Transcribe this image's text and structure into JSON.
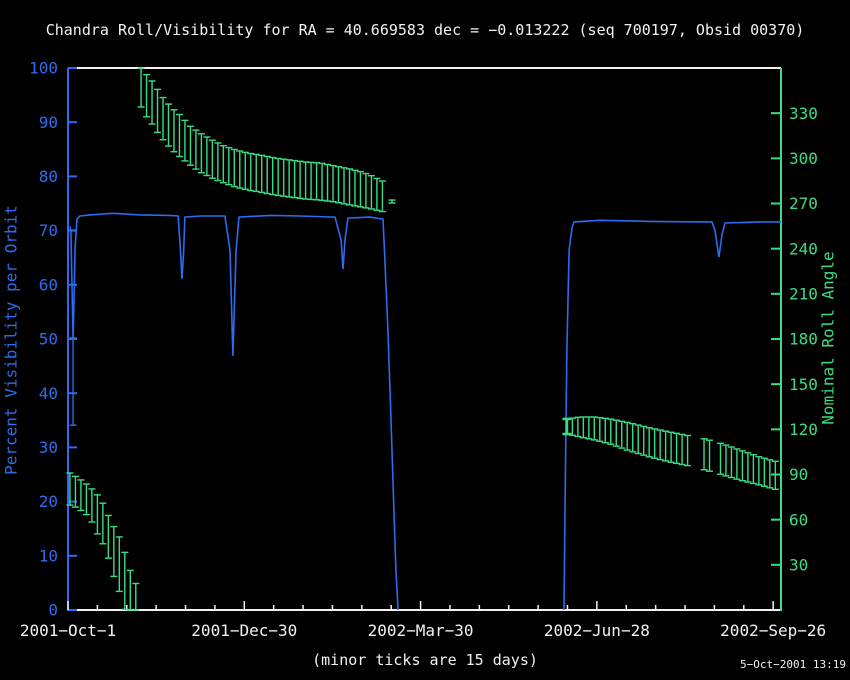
{
  "timestamp": "5−Oct−2001 13:19",
  "chart_data": {
    "type": "line",
    "title": "Chandra Roll/Visibility for RA = 40.669583 dec = −0.013222 (seq 700197, Obsid 00370)",
    "colors": {
      "visibility": "#2b6cf0",
      "roll": "#3cdc82",
      "frame": "#f2f2f2",
      "background": "#000000"
    },
    "x_axis": {
      "range_days": [
        0,
        364
      ],
      "major_tick_days": 90,
      "minor_tick_days": 15,
      "note": "(minor ticks are 15 days)",
      "tick_labels": [
        {
          "day": 0,
          "label": "2001−Oct−1"
        },
        {
          "day": 90,
          "label": "2001−Dec−30"
        },
        {
          "day": 180,
          "label": "2002−Mar−30"
        },
        {
          "day": 270,
          "label": "2002−Jun−28"
        },
        {
          "day": 360,
          "label": "2002−Sep−26"
        }
      ]
    },
    "y_left": {
      "label": "Percent Visibility per Orbit",
      "range": [
        0,
        100
      ],
      "tick_step": 10
    },
    "y_right": {
      "label": "Nominal Roll Angle",
      "range": [
        0,
        360
      ],
      "tick_step": 30,
      "labeled_ticks": [
        30,
        60,
        90,
        120,
        150,
        180,
        210,
        240,
        270,
        300,
        330
      ]
    },
    "visibility": {
      "name": "percent-visibility-per-orbit",
      "windows": [
        [
          [
            1.0,
            70.8
          ],
          [
            1.5,
            69.7
          ],
          [
            2.6,
            49.8
          ],
          [
            3.1,
            58.1
          ],
          [
            3.6,
            66.8
          ],
          [
            4.6,
            72.1
          ],
          [
            6.1,
            72.7
          ],
          [
            11.2,
            72.9
          ],
          [
            23.0,
            73.2
          ],
          [
            36.8,
            72.9
          ],
          [
            52.1,
            72.8
          ],
          [
            56.2,
            72.7
          ],
          [
            57.5,
            66.0
          ],
          [
            58.2,
            61.1
          ],
          [
            59.0,
            66.0
          ],
          [
            59.7,
            72.5
          ],
          [
            67.4,
            72.7
          ],
          [
            80.1,
            72.7
          ],
          [
            82.7,
            66.4
          ],
          [
            84.2,
            46.9
          ],
          [
            85.8,
            66.4
          ],
          [
            87.3,
            72.5
          ],
          [
            103.1,
            72.8
          ],
          [
            118.4,
            72.7
          ],
          [
            136.3,
            72.5
          ],
          [
            139.4,
            68.3
          ],
          [
            140.4,
            62.9
          ],
          [
            141.4,
            68.3
          ],
          [
            142.9,
            72.3
          ],
          [
            154.2,
            72.5
          ],
          [
            160.8,
            72.1
          ],
          [
            161.8,
            64.6
          ],
          [
            163.3,
            51.7
          ],
          [
            164.9,
            35.1
          ],
          [
            166.4,
            18.5
          ],
          [
            167.4,
            7.4
          ],
          [
            168.5,
            0
          ]
        ],
        [
          [
            253.2,
            0
          ],
          [
            253.7,
            16.6
          ],
          [
            254.2,
            33.2
          ],
          [
            254.7,
            48.0
          ],
          [
            255.8,
            66.4
          ],
          [
            257.3,
            70.5
          ],
          [
            258.3,
            71.6
          ],
          [
            271.6,
            71.9
          ],
          [
            297.1,
            71.7
          ],
          [
            322.6,
            71.6
          ],
          [
            328.7,
            71.6
          ],
          [
            330.3,
            70.1
          ],
          [
            332.3,
            65.1
          ],
          [
            333.9,
            69.2
          ],
          [
            335.4,
            71.4
          ],
          [
            353.3,
            71.6
          ],
          [
            364.0,
            71.6
          ]
        ]
      ],
      "start_caps": [
        {
          "day": 2.6,
          "vis": 70.1
        },
        {
          "day": 2.6,
          "vis": 60.0
        },
        {
          "day": 2.6,
          "vis": 50.2
        },
        {
          "day": 2.6,
          "vis": 34.1
        }
      ],
      "cap_connector": {
        "day": 2.6,
        "from": 50.2,
        "to": 34.1
      }
    },
    "bar_spacing_days": 2.8,
    "roll_bands": [
      {
        "name": "roll-band-upper-window1",
        "first_bar_bold": false,
        "gaps": [],
        "top": [
          [
            37.3,
            360
          ],
          [
            39.8,
            356
          ],
          [
            42.9,
            351.4
          ],
          [
            45.9,
            345.4
          ],
          [
            49.0,
            339.4
          ],
          [
            53.1,
            333.4
          ],
          [
            57.2,
            328.8
          ],
          [
            62.3,
            321.5
          ],
          [
            67.4,
            316.8
          ],
          [
            73.5,
            312.2
          ],
          [
            79.6,
            308.2
          ],
          [
            85.8,
            305.5
          ],
          [
            91.9,
            303.5
          ],
          [
            98.0,
            302.2
          ],
          [
            105.7,
            300.2
          ],
          [
            113.3,
            298.9
          ],
          [
            121.0,
            297.6
          ],
          [
            128.6,
            296.9
          ],
          [
            136.3,
            294.9
          ],
          [
            144.0,
            292.9
          ],
          [
            150.1,
            290.9
          ],
          [
            155.2,
            288.3
          ],
          [
            159.3,
            285.6
          ],
          [
            161.8,
            284.3
          ]
        ],
        "bottom": [
          [
            37.3,
            334.1
          ],
          [
            39.8,
            328.1
          ],
          [
            42.9,
            322.8
          ],
          [
            45.9,
            316.8
          ],
          [
            49.0,
            311.5
          ],
          [
            53.1,
            305.5
          ],
          [
            57.2,
            300.9
          ],
          [
            62.3,
            295.6
          ],
          [
            67.4,
            290.9
          ],
          [
            73.5,
            286.9
          ],
          [
            79.6,
            283.6
          ],
          [
            85.8,
            280.9
          ],
          [
            91.9,
            278.9
          ],
          [
            98.0,
            277.6
          ],
          [
            105.7,
            275.6
          ],
          [
            113.3,
            274.3
          ],
          [
            121.0,
            273.0
          ],
          [
            128.6,
            272.3
          ],
          [
            136.3,
            271.0
          ],
          [
            144.0,
            269.0
          ],
          [
            150.1,
            267.6
          ],
          [
            155.2,
            266.3
          ],
          [
            159.3,
            265.0
          ],
          [
            161.8,
            264.3
          ]
        ]
      },
      {
        "name": "roll-band-lower-window1",
        "first_bar_bold": false,
        "gaps": [],
        "top": [
          [
            1.0,
            91.0
          ],
          [
            5.1,
            87.7
          ],
          [
            8.2,
            85.0
          ],
          [
            11.2,
            81.7
          ],
          [
            13.8,
            78.4
          ],
          [
            16.3,
            74.4
          ],
          [
            18.9,
            68.4
          ],
          [
            20.9,
            61.8
          ],
          [
            23.5,
            55.1
          ],
          [
            26.5,
            47.8
          ],
          [
            29.1,
            37.9
          ],
          [
            31.7,
            26.6
          ],
          [
            34.7,
            17.3
          ]
        ],
        "bottom": [
          [
            1.0,
            69.7
          ],
          [
            5.1,
            67.7
          ],
          [
            8.2,
            64.4
          ],
          [
            11.2,
            61.8
          ],
          [
            13.8,
            53.1
          ],
          [
            16.3,
            47.8
          ],
          [
            18.9,
            41.2
          ],
          [
            20.9,
            33.2
          ],
          [
            23.5,
            21.9
          ],
          [
            26.5,
            11.3
          ],
          [
            29.1,
            0
          ],
          [
            31.7,
            0
          ],
          [
            34.7,
            0
          ]
        ]
      },
      {
        "name": "roll-band-window2",
        "first_bar_bold": true,
        "gaps": [
          [
            319.0,
            323.5
          ],
          [
            328.0,
            330.9
          ]
        ],
        "top": [
          [
            254.7,
            126.9
          ],
          [
            261.4,
            128.2
          ],
          [
            269.0,
            128.2
          ],
          [
            276.7,
            126.9
          ],
          [
            286.9,
            124.2
          ],
          [
            297.1,
            120.9
          ],
          [
            307.3,
            118.2
          ],
          [
            317.5,
            115.6
          ],
          [
            325.2,
            113.6
          ],
          [
            332.8,
            110.9
          ],
          [
            343.0,
            106.3
          ],
          [
            353.2,
            101.6
          ],
          [
            362.4,
            98.3
          ]
        ],
        "bottom": [
          [
            254.7,
            116.9
          ],
          [
            261.4,
            114.9
          ],
          [
            269.0,
            112.9
          ],
          [
            276.7,
            110.3
          ],
          [
            286.9,
            105.6
          ],
          [
            297.1,
            101.6
          ],
          [
            307.3,
            98.3
          ],
          [
            317.5,
            95.6
          ],
          [
            325.2,
            93.0
          ],
          [
            332.8,
            90.3
          ],
          [
            343.0,
            86.3
          ],
          [
            353.2,
            83.0
          ],
          [
            362.4,
            79.7
          ]
        ]
      }
    ],
    "lone_mark": {
      "day": 165.4,
      "roll_top": 272.3,
      "roll_bottom": 270.3
    }
  }
}
